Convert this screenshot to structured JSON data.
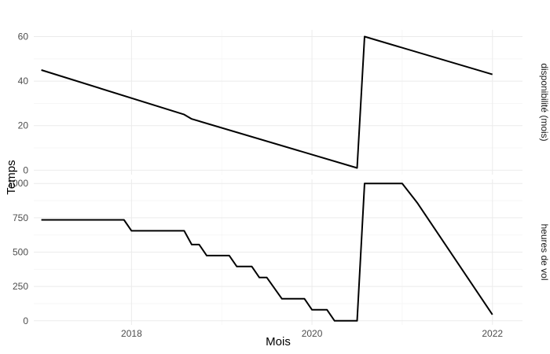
{
  "chart_data": {
    "type": "line",
    "xlabel": "Mois",
    "ylabel": "Temps",
    "x_ticks": [
      "2018",
      "2020",
      "2022"
    ],
    "x_range": [
      "2016-12",
      "2022-05"
    ],
    "grid": true,
    "line_color": "#000000",
    "facets": [
      {
        "strip_label": "disponibilité (mois)",
        "ylim": [
          -2,
          63
        ],
        "y_ticks": [
          0,
          20,
          40,
          60
        ],
        "points": [
          {
            "x": "2017-01",
            "y": 45
          },
          {
            "x": "2018-08",
            "y": 25
          },
          {
            "x": "2018-09",
            "y": 23
          },
          {
            "x": "2020-07",
            "y": 1
          },
          {
            "x": "2020-08",
            "y": 60
          },
          {
            "x": "2022-01",
            "y": 43
          }
        ]
      },
      {
        "strip_label": "heures de vol",
        "ylim": [
          -30,
          1030
        ],
        "y_ticks": [
          0,
          250,
          500,
          750,
          1000
        ],
        "points": [
          {
            "x": "2017-01",
            "y": 735
          },
          {
            "x": "2017-12",
            "y": 735
          },
          {
            "x": "2018-01",
            "y": 655
          },
          {
            "x": "2018-08",
            "y": 655
          },
          {
            "x": "2018-09",
            "y": 555
          },
          {
            "x": "2018-10",
            "y": 555
          },
          {
            "x": "2018-11",
            "y": 475
          },
          {
            "x": "2019-02",
            "y": 475
          },
          {
            "x": "2019-03",
            "y": 395
          },
          {
            "x": "2019-05",
            "y": 395
          },
          {
            "x": "2019-06",
            "y": 315
          },
          {
            "x": "2019-07",
            "y": 315
          },
          {
            "x": "2019-09",
            "y": 160
          },
          {
            "x": "2019-12",
            "y": 160
          },
          {
            "x": "2020-01",
            "y": 80
          },
          {
            "x": "2020-03",
            "y": 80
          },
          {
            "x": "2020-04",
            "y": 0
          },
          {
            "x": "2020-07",
            "y": 0
          },
          {
            "x": "2020-08",
            "y": 1000
          },
          {
            "x": "2021-01",
            "y": 1000
          },
          {
            "x": "2021-03",
            "y": 860
          },
          {
            "x": "2022-01",
            "y": 45
          }
        ]
      }
    ]
  }
}
